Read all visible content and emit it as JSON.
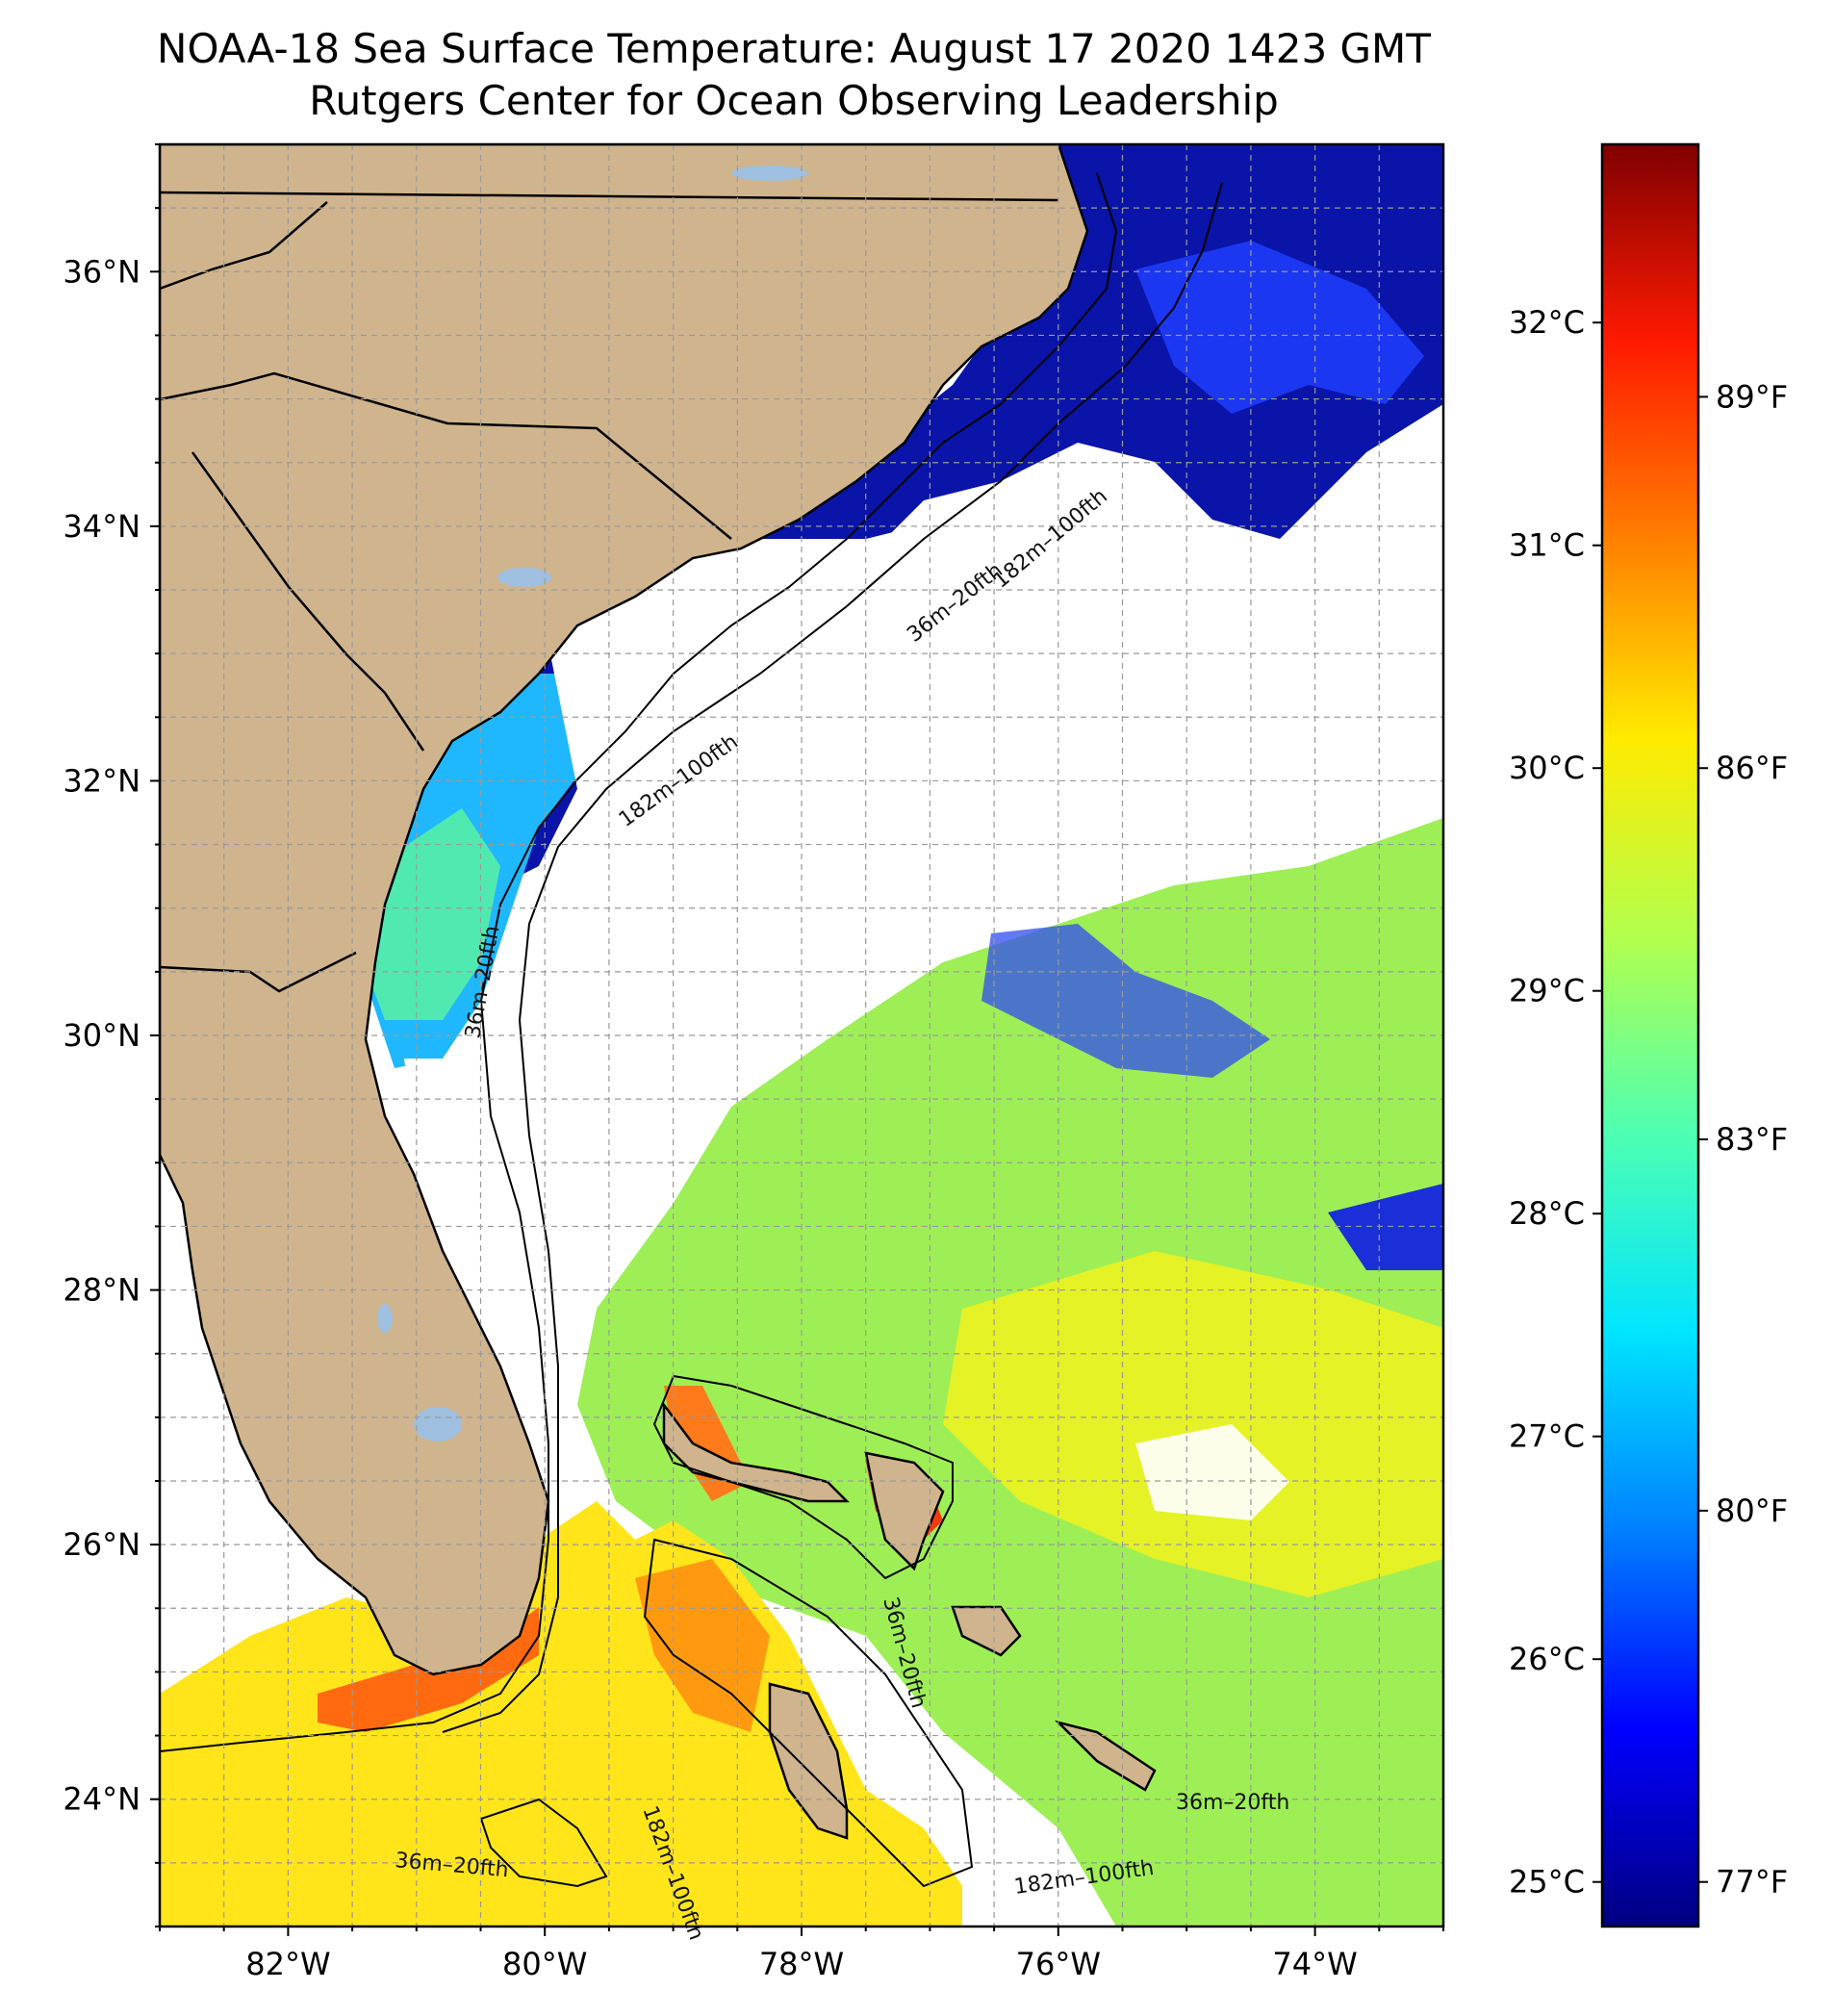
{
  "title_line1": "NOAA-18 Sea Surface Temperature: August 17 2020 1423 GMT",
  "title_line2": "Rutgers Center for Ocean Observing Leadership",
  "map": {
    "lon_range": [
      -83.0,
      -73.0
    ],
    "lat_range": [
      23.0,
      37.0
    ],
    "lon_ticks": [
      {
        "value": -82,
        "label": "82°W"
      },
      {
        "value": -80,
        "label": "80°W"
      },
      {
        "value": -78,
        "label": "78°W"
      },
      {
        "value": -76,
        "label": "76°W"
      },
      {
        "value": -74,
        "label": "74°W"
      }
    ],
    "lat_ticks": [
      {
        "value": 24,
        "label": "24°N"
      },
      {
        "value": 26,
        "label": "26°N"
      },
      {
        "value": 28,
        "label": "28°N"
      },
      {
        "value": 30,
        "label": "30°N"
      },
      {
        "value": 32,
        "label": "32°N"
      },
      {
        "value": 34,
        "label": "34°N"
      },
      {
        "value": 36,
        "label": "36°N"
      }
    ],
    "grid": true,
    "land_color": "#cfb48d",
    "lake_color": "#9fbfe0",
    "contour_labels": [
      "36m–20fth",
      "182m–100fth"
    ]
  },
  "colorbar": {
    "range_c": [
      24.8,
      32.8
    ],
    "celsius_ticks": [
      {
        "value": 25,
        "label": "25°C"
      },
      {
        "value": 26,
        "label": "26°C"
      },
      {
        "value": 27,
        "label": "27°C"
      },
      {
        "value": 28,
        "label": "28°C"
      },
      {
        "value": 29,
        "label": "29°C"
      },
      {
        "value": 30,
        "label": "30°C"
      },
      {
        "value": 31,
        "label": "31°C"
      },
      {
        "value": 32,
        "label": "32°C"
      }
    ],
    "fahrenheit_ticks": [
      {
        "value": 77,
        "label": "77°F"
      },
      {
        "value": 80,
        "label": "80°F"
      },
      {
        "value": 83,
        "label": "83°F"
      },
      {
        "value": 86,
        "label": "86°F"
      },
      {
        "value": 89,
        "label": "89°F"
      }
    ],
    "colors": [
      "#000080",
      "#0000ff",
      "#0080ff",
      "#00e5ff",
      "#4dffb3",
      "#b3ff4d",
      "#ffeb00",
      "#ff8000",
      "#ff1a00",
      "#800000"
    ]
  }
}
